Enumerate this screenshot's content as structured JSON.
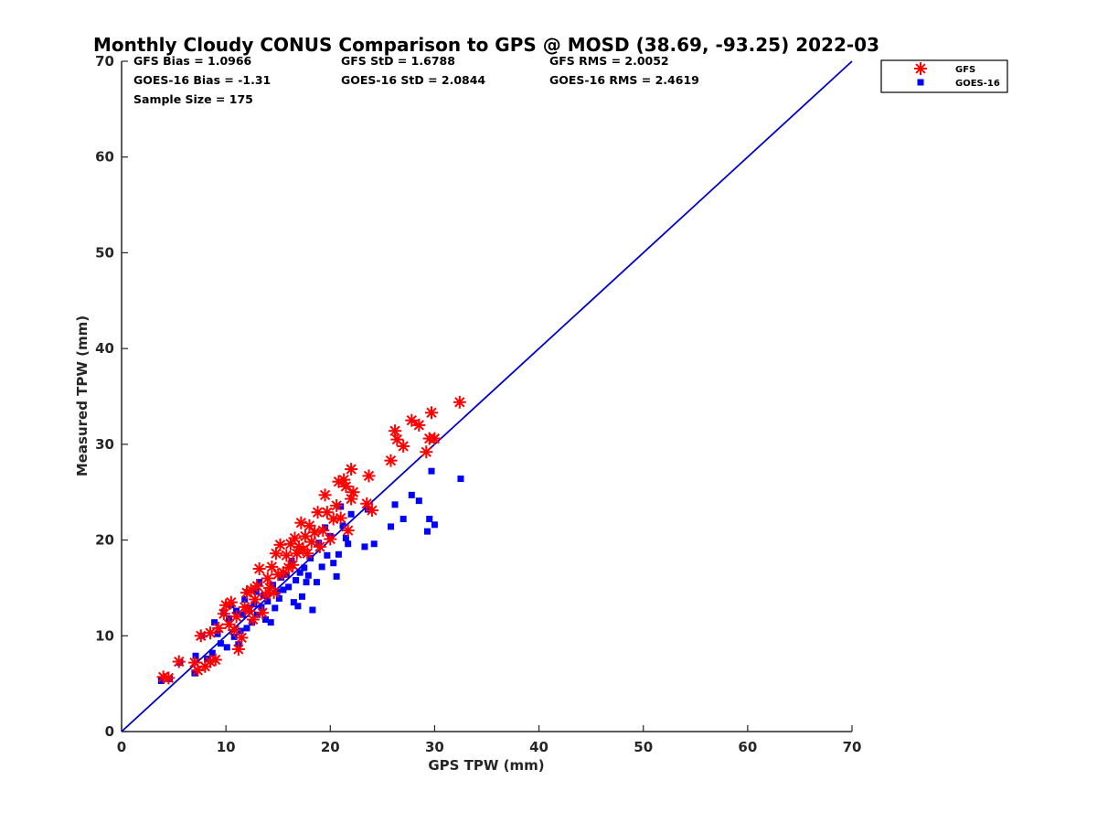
{
  "chart_data": {
    "type": "scatter",
    "title": "Monthly Cloudy CONUS Comparison to GPS @ MOSD (38.69, -93.25) 2022-03",
    "xlabel": "GPS TPW (mm)",
    "ylabel": "Measured TPW (mm)",
    "xlim": [
      0,
      70
    ],
    "ylim": [
      0,
      70
    ],
    "xticks": [
      0,
      10,
      20,
      30,
      40,
      50,
      60,
      70
    ],
    "yticks": [
      0,
      10,
      20,
      30,
      40,
      50,
      60,
      70
    ],
    "grid": false,
    "legend_position": "top-right",
    "reference_line": {
      "x": [
        0,
        70
      ],
      "y": [
        0,
        70
      ],
      "color": "#0000cc"
    },
    "stats": [
      {
        "text": "GFS Bias = 1.0966"
      },
      {
        "text": "GFS StD = 1.6788"
      },
      {
        "text": "GFS RMS = 2.0052"
      },
      {
        "text": "GOES-16 Bias = -1.31"
      },
      {
        "text": "GOES-16 StD = 2.0844"
      },
      {
        "text": "GOES-16 RMS = 2.4619"
      },
      {
        "text": "Sample Size = 175"
      }
    ],
    "series": [
      {
        "name": "GFS",
        "marker": "asterisk",
        "color": "#ff0000",
        "points": [
          [
            4,
            5.7
          ],
          [
            4.5,
            5.6
          ],
          [
            5.5,
            7.3
          ],
          [
            7,
            7.2
          ],
          [
            7.3,
            6.4
          ],
          [
            7.6,
            10
          ],
          [
            8,
            6.8
          ],
          [
            8.5,
            7.3
          ],
          [
            9,
            7.5
          ],
          [
            8.5,
            10.3
          ],
          [
            9.3,
            10.8
          ],
          [
            9.8,
            12.3
          ],
          [
            10,
            13.2
          ],
          [
            10.3,
            11.2
          ],
          [
            10.5,
            13.5
          ],
          [
            10.8,
            10.6
          ],
          [
            11,
            12
          ],
          [
            11.2,
            8.6
          ],
          [
            11.5,
            9.8
          ],
          [
            11.8,
            13
          ],
          [
            12,
            14.5
          ],
          [
            12.2,
            12.6
          ],
          [
            12.4,
            14.8
          ],
          [
            12.6,
            11.7
          ],
          [
            12.8,
            13.8
          ],
          [
            13,
            15.2
          ],
          [
            13.2,
            17
          ],
          [
            13.5,
            12.4
          ],
          [
            13.8,
            14.3
          ],
          [
            14,
            16
          ],
          [
            14.2,
            15
          ],
          [
            14.4,
            17.2
          ],
          [
            14.6,
            14.5
          ],
          [
            14.8,
            18.6
          ],
          [
            15,
            16.4
          ],
          [
            15.2,
            19.5
          ],
          [
            15.5,
            16.6
          ],
          [
            15.8,
            18.4
          ],
          [
            16,
            17.1
          ],
          [
            16.2,
            19.6
          ],
          [
            16.4,
            17.4
          ],
          [
            16.6,
            20.2
          ],
          [
            16.8,
            18.6
          ],
          [
            17,
            19.3
          ],
          [
            17.2,
            21.8
          ],
          [
            17.4,
            19
          ],
          [
            17.6,
            20.4
          ],
          [
            17.8,
            18.6
          ],
          [
            18,
            21.5
          ],
          [
            18.2,
            19.8
          ],
          [
            18.5,
            20.8
          ],
          [
            18.8,
            22.9
          ],
          [
            19,
            19.3
          ],
          [
            19.3,
            21
          ],
          [
            19.5,
            24.7
          ],
          [
            19.7,
            22.9
          ],
          [
            20,
            20.1
          ],
          [
            20.3,
            22.2
          ],
          [
            20.6,
            23.6
          ],
          [
            20.8,
            26.1
          ],
          [
            21,
            22.3
          ],
          [
            21.3,
            26.3
          ],
          [
            21.5,
            25.6
          ],
          [
            21.7,
            21
          ],
          [
            22,
            24.3
          ],
          [
            22,
            27.4
          ],
          [
            22.2,
            25
          ],
          [
            23.5,
            23.8
          ],
          [
            23.7,
            26.7
          ],
          [
            24,
            23.1
          ],
          [
            25.8,
            28.3
          ],
          [
            26.2,
            31.4
          ],
          [
            26.4,
            30.5
          ],
          [
            27,
            29.8
          ],
          [
            27.8,
            32.5
          ],
          [
            28.5,
            32
          ],
          [
            29.2,
            29.2
          ],
          [
            29.5,
            30.6
          ],
          [
            29.7,
            33.3
          ],
          [
            30,
            30.6
          ],
          [
            32.4,
            34.4
          ]
        ]
      },
      {
        "name": "GOES-16",
        "marker": "square",
        "color": "#0000ff",
        "points": [
          [
            3.8,
            5.3
          ],
          [
            4.6,
            5.5
          ],
          [
            5.6,
            7.2
          ],
          [
            7,
            6.1
          ],
          [
            7.1,
            7.9
          ],
          [
            7.7,
            10
          ],
          [
            8.2,
            7.6
          ],
          [
            8.7,
            8.2
          ],
          [
            8.9,
            11.4
          ],
          [
            9.2,
            10.2
          ],
          [
            9.5,
            9.2
          ],
          [
            9.8,
            12.4
          ],
          [
            10.1,
            8.8
          ],
          [
            10.3,
            11.8
          ],
          [
            10.5,
            13.2
          ],
          [
            10.8,
            9.9
          ],
          [
            11,
            12.6
          ],
          [
            11.2,
            9.1
          ],
          [
            11.4,
            10.5
          ],
          [
            11.6,
            12.2
          ],
          [
            11.8,
            13.8
          ],
          [
            12,
            10.8
          ],
          [
            12.2,
            12.9
          ],
          [
            12.5,
            11.4
          ],
          [
            12.7,
            13.3
          ],
          [
            12.9,
            14.6
          ],
          [
            13,
            12.2
          ],
          [
            13.2,
            15.6
          ],
          [
            13.4,
            13
          ],
          [
            13.6,
            14.2
          ],
          [
            13.8,
            11.7
          ],
          [
            14,
            13.6
          ],
          [
            14.3,
            11.4
          ],
          [
            14.5,
            15.3
          ],
          [
            14.7,
            12.9
          ],
          [
            14.9,
            14.6
          ],
          [
            15.1,
            13.9
          ],
          [
            15.3,
            16.1
          ],
          [
            15.5,
            14.8
          ],
          [
            15.8,
            16.4
          ],
          [
            16,
            15.1
          ],
          [
            16.3,
            17.8
          ],
          [
            16.5,
            13.5
          ],
          [
            16.7,
            15.8
          ],
          [
            16.9,
            13.1
          ],
          [
            17.1,
            16.6
          ],
          [
            17.3,
            14.1
          ],
          [
            17.5,
            17.1
          ],
          [
            17.7,
            15.6
          ],
          [
            17.9,
            16.3
          ],
          [
            18.1,
            18.1
          ],
          [
            18.3,
            12.7
          ],
          [
            18.7,
            15.6
          ],
          [
            18.9,
            19.7
          ],
          [
            19.2,
            17.2
          ],
          [
            19.5,
            21.3
          ],
          [
            19.7,
            18.4
          ],
          [
            20,
            20.4
          ],
          [
            20.3,
            17.6
          ],
          [
            20.6,
            16.2
          ],
          [
            20.8,
            18.5
          ],
          [
            21,
            23.5
          ],
          [
            21.2,
            21.5
          ],
          [
            21.5,
            20.2
          ],
          [
            21.7,
            19.6
          ],
          [
            22,
            22.7
          ],
          [
            23.3,
            19.3
          ],
          [
            23.6,
            23.2
          ],
          [
            24.2,
            19.6
          ],
          [
            25.8,
            21.4
          ],
          [
            26.2,
            23.7
          ],
          [
            27,
            22.2
          ],
          [
            27.8,
            24.7
          ],
          [
            28.5,
            24.1
          ],
          [
            29.3,
            20.9
          ],
          [
            29.5,
            22.2
          ],
          [
            29.7,
            27.2
          ],
          [
            30,
            21.6
          ],
          [
            32.5,
            26.4
          ]
        ]
      }
    ]
  }
}
